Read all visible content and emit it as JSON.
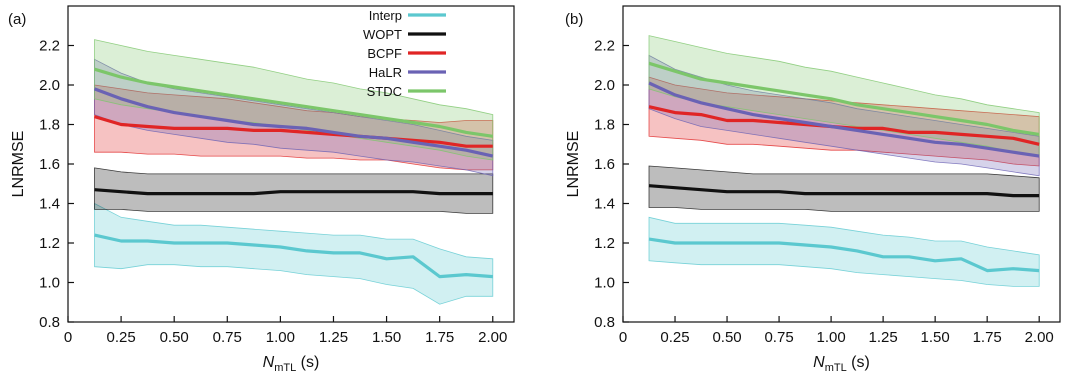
{
  "chart_data": [
    {
      "type": "line",
      "panel_label": "(a)",
      "xlabel_main": "N",
      "xlabel_sub": "mTL",
      "xlabel_unit": " (s)",
      "ylabel": "LNRMSE",
      "xlim": [
        0,
        2.1
      ],
      "ylim": [
        0.8,
        2.4
      ],
      "xticks": [
        0,
        0.25,
        0.5,
        0.75,
        1.0,
        1.25,
        1.5,
        1.75,
        2.0
      ],
      "xtick_labels": [
        "0",
        "0.25",
        "0.50",
        "0.75",
        "1.00",
        "1.25",
        "1.50",
        "1.75",
        "2.00"
      ],
      "yticks": [
        0.8,
        1.0,
        1.2,
        1.4,
        1.6,
        1.8,
        2.0,
        2.2
      ],
      "ytick_labels": [
        "0.8",
        "1.0",
        "1.2",
        "1.4",
        "1.6",
        "1.8",
        "2.0",
        "2.2"
      ],
      "legend_position": "top-right",
      "show_legend": true,
      "x": [
        0.125,
        0.25,
        0.375,
        0.5,
        0.625,
        0.75,
        0.875,
        1.0,
        1.125,
        1.25,
        1.375,
        1.5,
        1.625,
        1.75,
        1.875,
        2.0
      ],
      "series": [
        {
          "name": "Interp",
          "color": "#5bc8cf",
          "values": [
            1.24,
            1.21,
            1.21,
            1.2,
            1.2,
            1.2,
            1.19,
            1.18,
            1.16,
            1.15,
            1.15,
            1.12,
            1.13,
            1.03,
            1.04,
            1.03
          ],
          "lower": [
            1.08,
            1.07,
            1.09,
            1.09,
            1.08,
            1.08,
            1.07,
            1.06,
            1.04,
            1.03,
            1.02,
            0.99,
            0.97,
            0.89,
            0.93,
            0.93
          ],
          "upper": [
            1.4,
            1.33,
            1.31,
            1.29,
            1.29,
            1.28,
            1.27,
            1.26,
            1.25,
            1.24,
            1.24,
            1.22,
            1.22,
            1.17,
            1.13,
            1.12
          ]
        },
        {
          "name": "WOPT",
          "color": "#111111",
          "values": [
            1.47,
            1.46,
            1.45,
            1.45,
            1.45,
            1.45,
            1.45,
            1.46,
            1.46,
            1.46,
            1.46,
            1.46,
            1.46,
            1.45,
            1.45,
            1.45
          ],
          "lower": [
            1.37,
            1.37,
            1.36,
            1.36,
            1.36,
            1.36,
            1.36,
            1.36,
            1.36,
            1.36,
            1.36,
            1.36,
            1.36,
            1.36,
            1.35,
            1.35
          ],
          "upper": [
            1.58,
            1.56,
            1.55,
            1.55,
            1.55,
            1.55,
            1.55,
            1.55,
            1.55,
            1.55,
            1.55,
            1.55,
            1.55,
            1.55,
            1.55,
            1.55
          ]
        },
        {
          "name": "BCPF",
          "color": "#e02525",
          "values": [
            1.84,
            1.8,
            1.79,
            1.78,
            1.78,
            1.78,
            1.77,
            1.77,
            1.76,
            1.75,
            1.74,
            1.73,
            1.72,
            1.71,
            1.69,
            1.69
          ],
          "lower": [
            1.66,
            1.66,
            1.65,
            1.65,
            1.64,
            1.64,
            1.64,
            1.64,
            1.63,
            1.63,
            1.62,
            1.62,
            1.6,
            1.58,
            1.57,
            1.57
          ],
          "upper": [
            2.0,
            1.98,
            1.96,
            1.95,
            1.94,
            1.93,
            1.91,
            1.89,
            1.87,
            1.86,
            1.84,
            1.83,
            1.82,
            1.81,
            1.82,
            1.82
          ]
        },
        {
          "name": "HaLR",
          "color": "#6a62b4",
          "values": [
            1.98,
            1.93,
            1.89,
            1.86,
            1.84,
            1.82,
            1.8,
            1.79,
            1.78,
            1.76,
            1.74,
            1.73,
            1.71,
            1.69,
            1.67,
            1.64
          ],
          "lower": [
            1.85,
            1.8,
            1.77,
            1.75,
            1.73,
            1.71,
            1.7,
            1.68,
            1.67,
            1.66,
            1.64,
            1.62,
            1.61,
            1.59,
            1.57,
            1.54
          ],
          "upper": [
            2.13,
            2.06,
            2.01,
            1.98,
            1.96,
            1.94,
            1.92,
            1.9,
            1.88,
            1.86,
            1.84,
            1.82,
            1.8,
            1.77,
            1.74,
            1.72
          ]
        },
        {
          "name": "STDC",
          "color": "#7cc66a",
          "values": [
            2.08,
            2.04,
            2.01,
            1.99,
            1.97,
            1.95,
            1.93,
            1.91,
            1.89,
            1.87,
            1.85,
            1.83,
            1.81,
            1.79,
            1.76,
            1.74
          ],
          "lower": [
            1.93,
            1.9,
            1.88,
            1.86,
            1.84,
            1.82,
            1.81,
            1.79,
            1.77,
            1.75,
            1.73,
            1.71,
            1.69,
            1.67,
            1.64,
            1.62
          ],
          "upper": [
            2.23,
            2.2,
            2.17,
            2.15,
            2.13,
            2.11,
            2.09,
            2.06,
            2.03,
            2.01,
            1.98,
            1.96,
            1.93,
            1.9,
            1.88,
            1.85
          ]
        }
      ]
    },
    {
      "type": "line",
      "panel_label": "(b)",
      "xlabel_main": "N",
      "xlabel_sub": "mTL",
      "xlabel_unit": " (s)",
      "ylabel": "LNRMSE",
      "xlim": [
        0,
        2.1
      ],
      "ylim": [
        0.8,
        2.4
      ],
      "xticks": [
        0,
        0.25,
        0.5,
        0.75,
        1.0,
        1.25,
        1.5,
        1.75,
        2.0
      ],
      "xtick_labels": [
        "0",
        "0.25",
        "0.50",
        "0.75",
        "1.00",
        "1.25",
        "1.50",
        "1.75",
        "2.00"
      ],
      "yticks": [
        0.8,
        1.0,
        1.2,
        1.4,
        1.6,
        1.8,
        2.0,
        2.2
      ],
      "ytick_labels": [
        "0.8",
        "1.0",
        "1.2",
        "1.4",
        "1.6",
        "1.8",
        "2.0",
        "2.2"
      ],
      "show_legend": false,
      "x": [
        0.125,
        0.25,
        0.375,
        0.5,
        0.625,
        0.75,
        0.875,
        1.0,
        1.125,
        1.25,
        1.375,
        1.5,
        1.625,
        1.75,
        1.875,
        2.0
      ],
      "series": [
        {
          "name": "Interp",
          "color": "#5bc8cf",
          "values": [
            1.22,
            1.2,
            1.2,
            1.2,
            1.2,
            1.2,
            1.19,
            1.18,
            1.16,
            1.13,
            1.13,
            1.11,
            1.12,
            1.06,
            1.07,
            1.06
          ],
          "lower": [
            1.11,
            1.1,
            1.09,
            1.09,
            1.09,
            1.09,
            1.08,
            1.07,
            1.05,
            1.04,
            1.03,
            1.02,
            1.01,
            0.99,
            0.98,
            0.98
          ],
          "upper": [
            1.33,
            1.3,
            1.3,
            1.3,
            1.3,
            1.3,
            1.29,
            1.28,
            1.26,
            1.24,
            1.23,
            1.21,
            1.21,
            1.18,
            1.16,
            1.14
          ]
        },
        {
          "name": "WOPT",
          "color": "#111111",
          "values": [
            1.49,
            1.48,
            1.47,
            1.46,
            1.46,
            1.46,
            1.45,
            1.45,
            1.45,
            1.45,
            1.45,
            1.45,
            1.45,
            1.45,
            1.44,
            1.44
          ],
          "lower": [
            1.38,
            1.38,
            1.37,
            1.37,
            1.37,
            1.37,
            1.37,
            1.36,
            1.36,
            1.36,
            1.36,
            1.36,
            1.36,
            1.36,
            1.36,
            1.36
          ],
          "upper": [
            1.59,
            1.58,
            1.57,
            1.56,
            1.55,
            1.55,
            1.55,
            1.55,
            1.55,
            1.55,
            1.55,
            1.55,
            1.55,
            1.55,
            1.54,
            1.53
          ]
        },
        {
          "name": "BCPF",
          "color": "#e02525",
          "values": [
            1.89,
            1.86,
            1.85,
            1.82,
            1.82,
            1.81,
            1.8,
            1.79,
            1.78,
            1.78,
            1.76,
            1.76,
            1.75,
            1.74,
            1.73,
            1.7
          ],
          "lower": [
            1.74,
            1.73,
            1.72,
            1.7,
            1.7,
            1.69,
            1.68,
            1.67,
            1.67,
            1.66,
            1.65,
            1.64,
            1.63,
            1.62,
            1.6,
            1.59
          ],
          "upper": [
            2.04,
            2.0,
            1.98,
            1.96,
            1.95,
            1.94,
            1.93,
            1.92,
            1.91,
            1.9,
            1.89,
            1.88,
            1.87,
            1.86,
            1.85,
            1.84
          ]
        },
        {
          "name": "HaLR",
          "color": "#6a62b4",
          "values": [
            2.01,
            1.95,
            1.91,
            1.88,
            1.85,
            1.83,
            1.81,
            1.79,
            1.77,
            1.75,
            1.73,
            1.71,
            1.7,
            1.68,
            1.66,
            1.64
          ],
          "lower": [
            1.88,
            1.83,
            1.79,
            1.77,
            1.75,
            1.73,
            1.71,
            1.69,
            1.67,
            1.65,
            1.63,
            1.61,
            1.6,
            1.58,
            1.56,
            1.54
          ],
          "upper": [
            2.15,
            2.08,
            2.04,
            2.0,
            1.97,
            1.95,
            1.93,
            1.91,
            1.88,
            1.86,
            1.84,
            1.82,
            1.8,
            1.78,
            1.76,
            1.74
          ]
        },
        {
          "name": "STDC",
          "color": "#7cc66a",
          "values": [
            2.11,
            2.07,
            2.03,
            2.01,
            1.99,
            1.97,
            1.95,
            1.93,
            1.9,
            1.88,
            1.86,
            1.84,
            1.82,
            1.8,
            1.77,
            1.75
          ],
          "lower": [
            1.98,
            1.94,
            1.91,
            1.89,
            1.87,
            1.85,
            1.83,
            1.81,
            1.79,
            1.77,
            1.75,
            1.73,
            1.71,
            1.69,
            1.66,
            1.64
          ],
          "upper": [
            2.25,
            2.22,
            2.19,
            2.16,
            2.14,
            2.12,
            2.09,
            2.07,
            2.04,
            2.01,
            1.98,
            1.95,
            1.93,
            1.9,
            1.88,
            1.86
          ]
        }
      ]
    }
  ]
}
